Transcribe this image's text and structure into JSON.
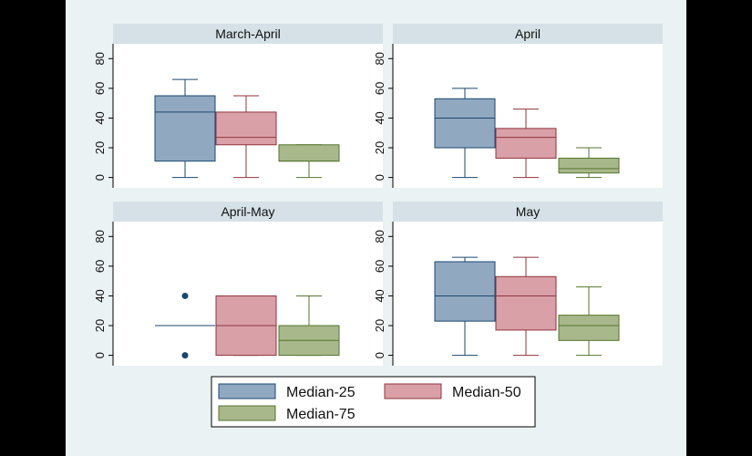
{
  "chart_data": {
    "type": "box",
    "panels": [
      {
        "title": "March-April",
        "boxes": [
          {
            "series": "Median-25",
            "min": 0,
            "q1": 11,
            "median": 44,
            "q3": 55,
            "max": 66
          },
          {
            "series": "Median-50",
            "min": 0,
            "q1": 22,
            "median": 27,
            "q3": 44,
            "max": 55
          },
          {
            "series": "Median-75",
            "min": 0,
            "q1": 11,
            "median": 11,
            "q3": 22,
            "max": 22
          }
        ]
      },
      {
        "title": "April",
        "boxes": [
          {
            "series": "Median-25",
            "min": 0,
            "q1": 20,
            "median": 40,
            "q3": 53,
            "max": 60
          },
          {
            "series": "Median-50",
            "min": 0,
            "q1": 13,
            "median": 27,
            "q3": 33,
            "max": 46
          },
          {
            "series": "Median-75",
            "min": 0,
            "q1": 3,
            "median": 6,
            "q3": 13,
            "max": 20
          }
        ]
      },
      {
        "title": "April-May",
        "boxes": [
          {
            "series": "Median-25",
            "min": 20,
            "q1": 20,
            "median": 20,
            "q3": 20,
            "max": 20,
            "outliers": [
              40,
              0
            ]
          },
          {
            "series": "Median-50",
            "min": 0,
            "q1": 0,
            "median": 20,
            "q3": 40,
            "max": 40
          },
          {
            "series": "Median-75",
            "min": 0,
            "q1": 0,
            "median": 10,
            "q3": 20,
            "max": 40
          }
        ]
      },
      {
        "title": "May",
        "boxes": [
          {
            "series": "Median-25",
            "min": 0,
            "q1": 23,
            "median": 40,
            "q3": 63,
            "max": 66
          },
          {
            "series": "Median-50",
            "min": 0,
            "q1": 17,
            "median": 40,
            "q3": 53,
            "max": 66
          },
          {
            "series": "Median-75",
            "min": 0,
            "q1": 10,
            "median": 20,
            "q3": 27,
            "max": 46
          }
        ]
      }
    ],
    "y_ticks": [
      0,
      20,
      40,
      60,
      80
    ],
    "ylim": [
      -7,
      90
    ],
    "legend": [
      {
        "name": "Median-25",
        "fill": "#90a8c0",
        "stroke": "#1a476f"
      },
      {
        "name": "Median-50",
        "fill": "#d9a0a8",
        "stroke": "#90353b"
      },
      {
        "name": "Median-75",
        "fill": "#a8b88a",
        "stroke": "#55752f"
      }
    ],
    "legend_position": "bottom-center",
    "grid": false
  }
}
